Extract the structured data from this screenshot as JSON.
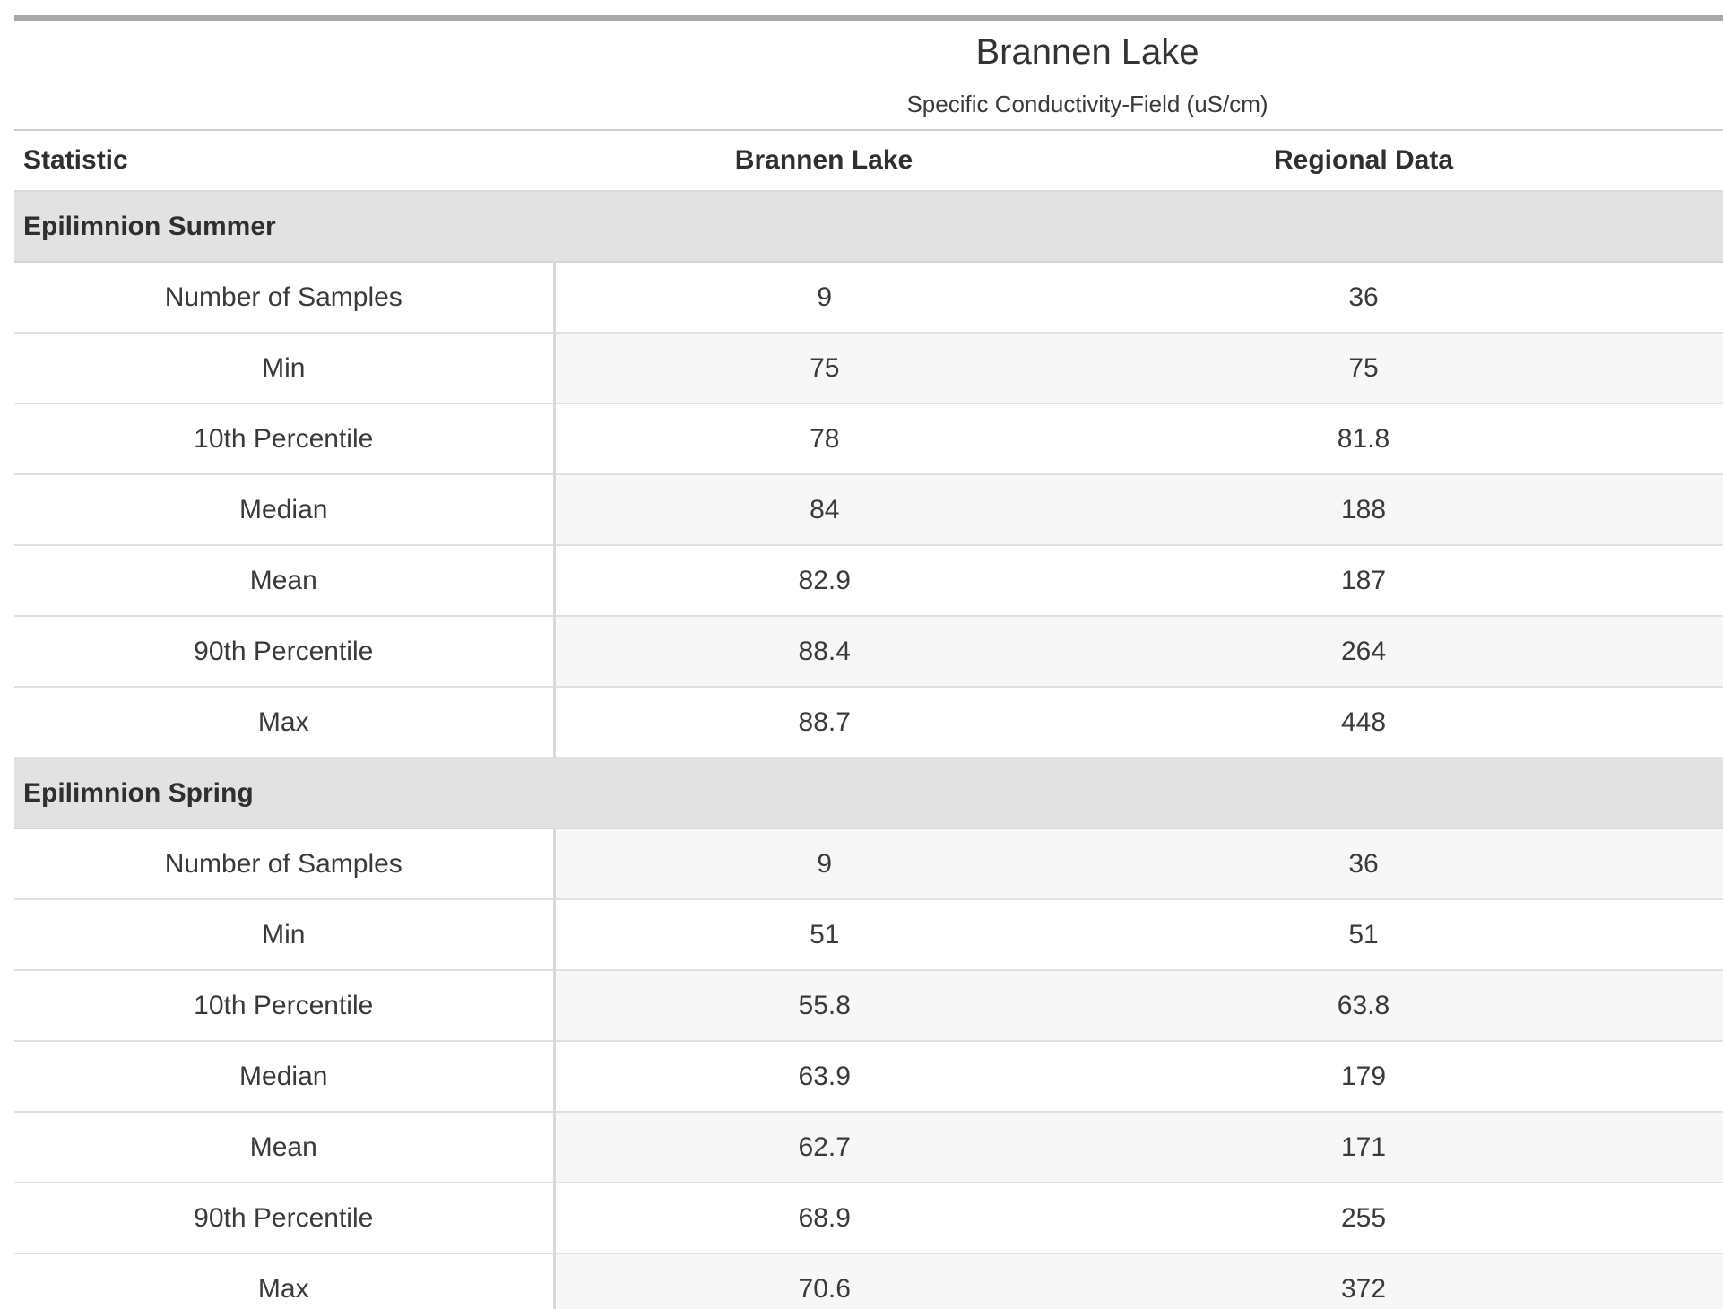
{
  "header": {
    "title": "Brannen Lake",
    "subtitle": "Specific Conductivity-Field (uS/cm)"
  },
  "table": {
    "columns": [
      "Statistic",
      "Brannen Lake",
      "Regional Data"
    ],
    "sections": [
      {
        "label": "Epilimnion Summer",
        "rows": [
          {
            "statistic": "Number of Samples",
            "brannen_lake": "9",
            "regional_data": "36"
          },
          {
            "statistic": "Min",
            "brannen_lake": "75",
            "regional_data": "75"
          },
          {
            "statistic": "10th Percentile",
            "brannen_lake": "78",
            "regional_data": "81.8"
          },
          {
            "statistic": "Median",
            "brannen_lake": "84",
            "regional_data": "188"
          },
          {
            "statistic": "Mean",
            "brannen_lake": "82.9",
            "regional_data": "187"
          },
          {
            "statistic": "90th Percentile",
            "brannen_lake": "88.4",
            "regional_data": "264"
          },
          {
            "statistic": "Max",
            "brannen_lake": "88.7",
            "regional_data": "448"
          }
        ]
      },
      {
        "label": "Epilimnion Spring",
        "rows": [
          {
            "statistic": "Number of Samples",
            "brannen_lake": "9",
            "regional_data": "36"
          },
          {
            "statistic": "Min",
            "brannen_lake": "51",
            "regional_data": "51"
          },
          {
            "statistic": "10th Percentile",
            "brannen_lake": "55.8",
            "regional_data": "63.8"
          },
          {
            "statistic": "Median",
            "brannen_lake": "63.9",
            "regional_data": "179"
          },
          {
            "statistic": "Mean",
            "brannen_lake": "62.7",
            "regional_data": "171"
          },
          {
            "statistic": "90th Percentile",
            "brannen_lake": "68.9",
            "regional_data": "255"
          },
          {
            "statistic": "Max",
            "brannen_lake": "70.6",
            "regional_data": "372"
          }
        ]
      }
    ]
  },
  "colors": {
    "top_border": "#a9a9a9",
    "bottom_border": "#d6d6d6",
    "section_header_bg": "#e2e2e2",
    "stripe_bg": "#f7f7f7",
    "grid_line": "#d9d9d9",
    "text": "#3a3a3a"
  }
}
